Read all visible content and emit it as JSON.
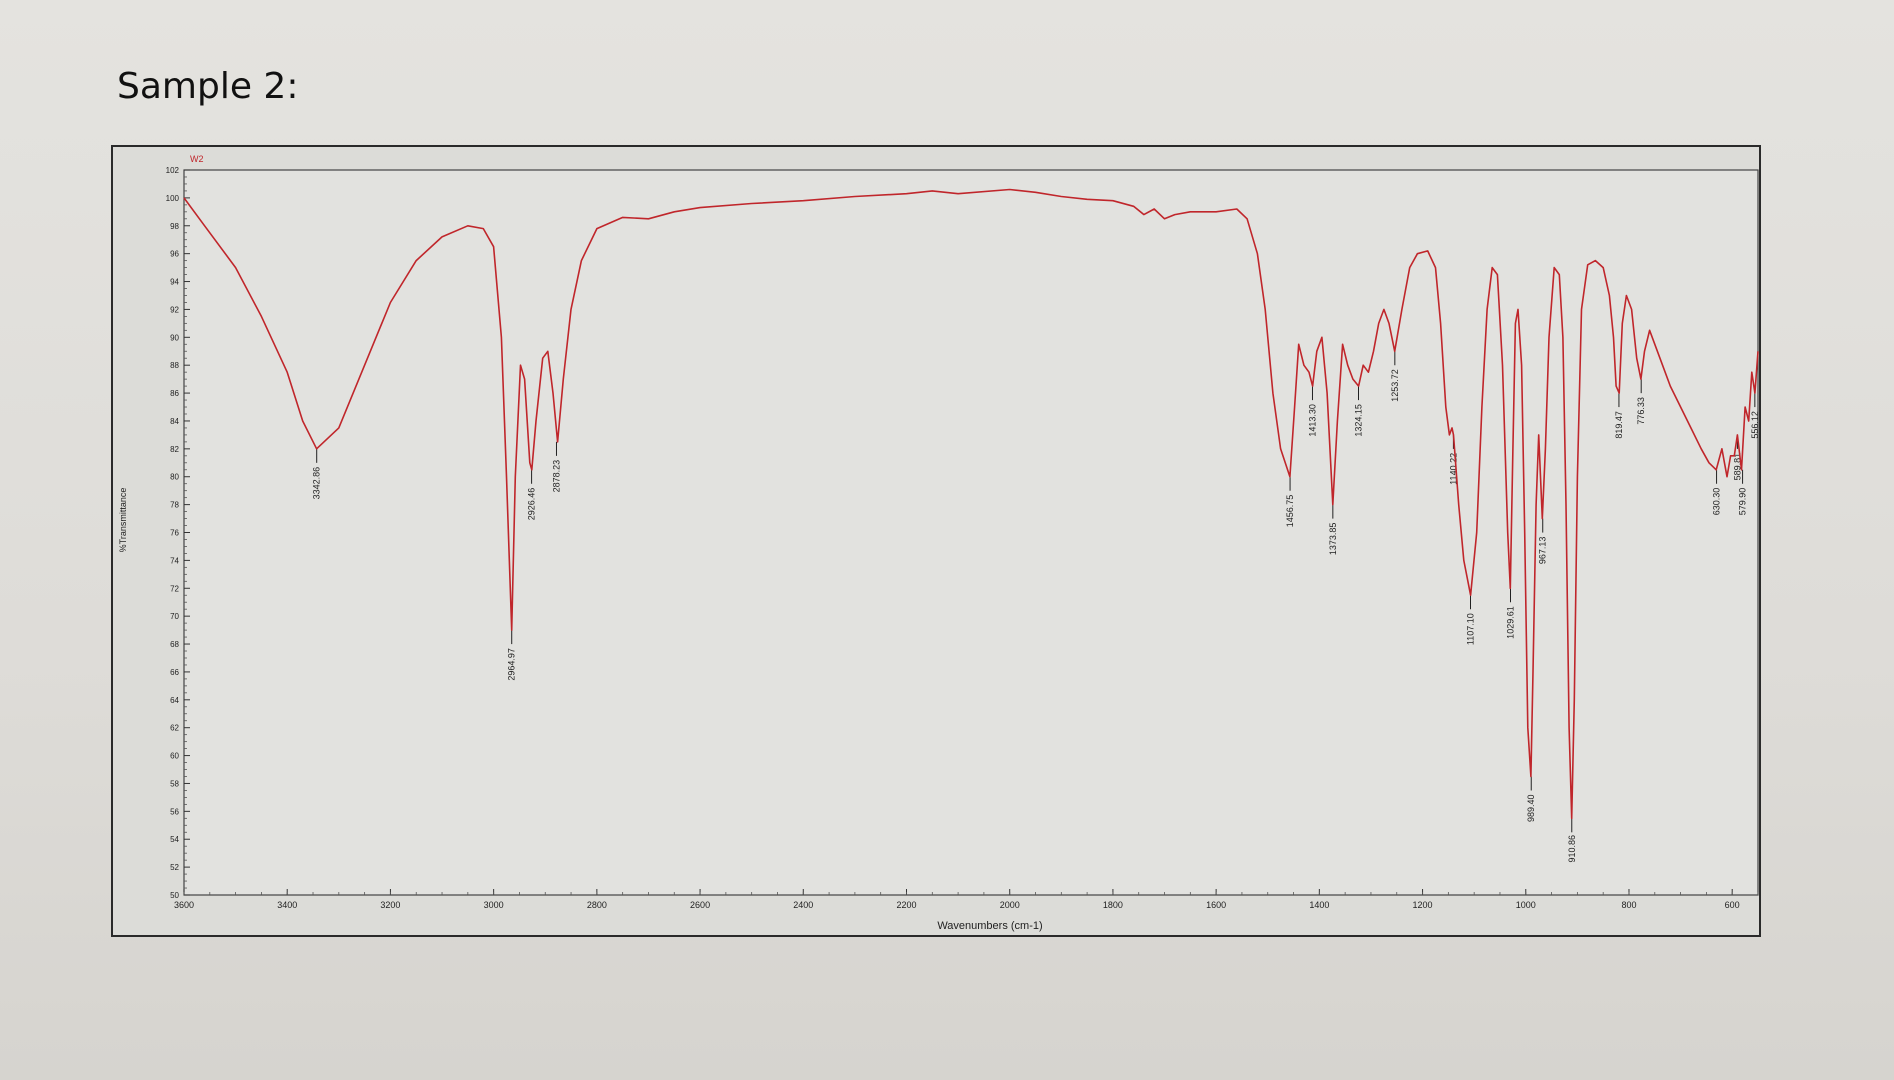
{
  "page": {
    "title": "Sample 2:"
  },
  "chart_data": {
    "type": "line",
    "series_label": "W2",
    "xlabel": "Wavenumbers (cm-1)",
    "ylabel": "%Transmittance",
    "xlim": [
      3600,
      550
    ],
    "ylim": [
      50,
      102
    ],
    "x_ticks": [
      3600,
      3400,
      3200,
      3000,
      2800,
      2600,
      2400,
      2200,
      2000,
      1800,
      1600,
      1400,
      1200,
      1000,
      800,
      600
    ],
    "y_ticks": [
      50,
      52,
      54,
      56,
      58,
      60,
      62,
      64,
      66,
      68,
      70,
      72,
      74,
      76,
      78,
      80,
      82,
      84,
      86,
      88,
      90,
      92,
      94,
      96,
      98,
      100,
      102
    ],
    "line_color": "#c0262b",
    "grid": false,
    "spectrum": [
      {
        "x": 3600,
        "y": 100
      },
      {
        "x": 3560,
        "y": 98
      },
      {
        "x": 3500,
        "y": 95
      },
      {
        "x": 3450,
        "y": 91.5
      },
      {
        "x": 3400,
        "y": 87.5
      },
      {
        "x": 3370,
        "y": 84
      },
      {
        "x": 3343,
        "y": 82
      },
      {
        "x": 3300,
        "y": 83.5
      },
      {
        "x": 3250,
        "y": 88
      },
      {
        "x": 3200,
        "y": 92.5
      },
      {
        "x": 3150,
        "y": 95.5
      },
      {
        "x": 3100,
        "y": 97.2
      },
      {
        "x": 3050,
        "y": 98
      },
      {
        "x": 3020,
        "y": 97.8
      },
      {
        "x": 3000,
        "y": 96.5
      },
      {
        "x": 2985,
        "y": 90
      },
      {
        "x": 2975,
        "y": 80
      },
      {
        "x": 2965,
        "y": 69
      },
      {
        "x": 2958,
        "y": 80
      },
      {
        "x": 2948,
        "y": 88
      },
      {
        "x": 2940,
        "y": 87
      },
      {
        "x": 2930,
        "y": 81
      },
      {
        "x": 2926,
        "y": 80.5
      },
      {
        "x": 2918,
        "y": 84
      },
      {
        "x": 2905,
        "y": 88.5
      },
      {
        "x": 2895,
        "y": 89
      },
      {
        "x": 2885,
        "y": 86
      },
      {
        "x": 2876,
        "y": 82.5
      },
      {
        "x": 2865,
        "y": 87
      },
      {
        "x": 2850,
        "y": 92
      },
      {
        "x": 2830,
        "y": 95.5
      },
      {
        "x": 2800,
        "y": 97.8
      },
      {
        "x": 2750,
        "y": 98.6
      },
      {
        "x": 2700,
        "y": 98.5
      },
      {
        "x": 2650,
        "y": 99
      },
      {
        "x": 2600,
        "y": 99.3
      },
      {
        "x": 2500,
        "y": 99.6
      },
      {
        "x": 2400,
        "y": 99.8
      },
      {
        "x": 2300,
        "y": 100.1
      },
      {
        "x": 2200,
        "y": 100.3
      },
      {
        "x": 2150,
        "y": 100.5
      },
      {
        "x": 2100,
        "y": 100.3
      },
      {
        "x": 2000,
        "y": 100.6
      },
      {
        "x": 1950,
        "y": 100.4
      },
      {
        "x": 1900,
        "y": 100.1
      },
      {
        "x": 1850,
        "y": 99.9
      },
      {
        "x": 1800,
        "y": 99.8
      },
      {
        "x": 1760,
        "y": 99.4
      },
      {
        "x": 1740,
        "y": 98.8
      },
      {
        "x": 1720,
        "y": 99.2
      },
      {
        "x": 1700,
        "y": 98.5
      },
      {
        "x": 1680,
        "y": 98.8
      },
      {
        "x": 1650,
        "y": 99
      },
      {
        "x": 1600,
        "y": 99
      },
      {
        "x": 1560,
        "y": 99.2
      },
      {
        "x": 1540,
        "y": 98.5
      },
      {
        "x": 1520,
        "y": 96
      },
      {
        "x": 1505,
        "y": 92
      },
      {
        "x": 1490,
        "y": 86
      },
      {
        "x": 1475,
        "y": 82
      },
      {
        "x": 1457,
        "y": 80
      },
      {
        "x": 1448,
        "y": 85
      },
      {
        "x": 1440,
        "y": 89.5
      },
      {
        "x": 1430,
        "y": 88
      },
      {
        "x": 1420,
        "y": 87.5
      },
      {
        "x": 1413,
        "y": 86.5
      },
      {
        "x": 1405,
        "y": 89
      },
      {
        "x": 1395,
        "y": 90
      },
      {
        "x": 1385,
        "y": 86
      },
      {
        "x": 1374,
        "y": 78
      },
      {
        "x": 1365,
        "y": 84
      },
      {
        "x": 1355,
        "y": 89.5
      },
      {
        "x": 1345,
        "y": 88
      },
      {
        "x": 1335,
        "y": 87
      },
      {
        "x": 1324,
        "y": 86.5
      },
      {
        "x": 1315,
        "y": 88
      },
      {
        "x": 1305,
        "y": 87.5
      },
      {
        "x": 1295,
        "y": 89
      },
      {
        "x": 1285,
        "y": 91
      },
      {
        "x": 1275,
        "y": 92
      },
      {
        "x": 1265,
        "y": 91
      },
      {
        "x": 1254,
        "y": 89
      },
      {
        "x": 1240,
        "y": 92
      },
      {
        "x": 1225,
        "y": 95
      },
      {
        "x": 1210,
        "y": 96
      },
      {
        "x": 1190,
        "y": 96.2
      },
      {
        "x": 1175,
        "y": 95
      },
      {
        "x": 1165,
        "y": 91
      },
      {
        "x": 1155,
        "y": 85
      },
      {
        "x": 1148,
        "y": 83
      },
      {
        "x": 1143,
        "y": 83.5
      },
      {
        "x": 1140,
        "y": 83
      },
      {
        "x": 1130,
        "y": 78
      },
      {
        "x": 1120,
        "y": 74
      },
      {
        "x": 1107,
        "y": 71.5
      },
      {
        "x": 1095,
        "y": 76
      },
      {
        "x": 1085,
        "y": 85
      },
      {
        "x": 1075,
        "y": 92
      },
      {
        "x": 1065,
        "y": 95
      },
      {
        "x": 1055,
        "y": 94.5
      },
      {
        "x": 1045,
        "y": 88
      },
      {
        "x": 1035,
        "y": 76
      },
      {
        "x": 1030,
        "y": 72
      },
      {
        "x": 1025,
        "y": 82
      },
      {
        "x": 1020,
        "y": 91
      },
      {
        "x": 1015,
        "y": 92
      },
      {
        "x": 1008,
        "y": 88
      },
      {
        "x": 1002,
        "y": 76
      },
      {
        "x": 996,
        "y": 62
      },
      {
        "x": 990,
        "y": 58.5
      },
      {
        "x": 986,
        "y": 66
      },
      {
        "x": 980,
        "y": 78
      },
      {
        "x": 975,
        "y": 83
      },
      {
        "x": 968,
        "y": 77
      },
      {
        "x": 962,
        "y": 82
      },
      {
        "x": 955,
        "y": 90
      },
      {
        "x": 945,
        "y": 95
      },
      {
        "x": 935,
        "y": 94.5
      },
      {
        "x": 928,
        "y": 90
      },
      {
        "x": 922,
        "y": 78
      },
      {
        "x": 916,
        "y": 62
      },
      {
        "x": 911,
        "y": 55.5
      },
      {
        "x": 906,
        "y": 64
      },
      {
        "x": 900,
        "y": 80
      },
      {
        "x": 892,
        "y": 92
      },
      {
        "x": 880,
        "y": 95.2
      },
      {
        "x": 865,
        "y": 95.5
      },
      {
        "x": 850,
        "y": 95
      },
      {
        "x": 838,
        "y": 93
      },
      {
        "x": 830,
        "y": 90
      },
      {
        "x": 825,
        "y": 86.5
      },
      {
        "x": 819,
        "y": 86
      },
      {
        "x": 813,
        "y": 91
      },
      {
        "x": 805,
        "y": 93
      },
      {
        "x": 795,
        "y": 92
      },
      {
        "x": 785,
        "y": 88.5
      },
      {
        "x": 777,
        "y": 87
      },
      {
        "x": 770,
        "y": 89
      },
      {
        "x": 760,
        "y": 90.5
      },
      {
        "x": 745,
        "y": 89
      },
      {
        "x": 720,
        "y": 86.5
      },
      {
        "x": 700,
        "y": 85
      },
      {
        "x": 680,
        "y": 83.5
      },
      {
        "x": 660,
        "y": 82
      },
      {
        "x": 645,
        "y": 81
      },
      {
        "x": 631,
        "y": 80.5
      },
      {
        "x": 620,
        "y": 82
      },
      {
        "x": 610,
        "y": 80
      },
      {
        "x": 603,
        "y": 81.5
      },
      {
        "x": 596,
        "y": 81.5
      },
      {
        "x": 590,
        "y": 83
      },
      {
        "x": 582,
        "y": 80.5
      },
      {
        "x": 575,
        "y": 85
      },
      {
        "x": 568,
        "y": 84
      },
      {
        "x": 562,
        "y": 87.5
      },
      {
        "x": 556,
        "y": 86
      },
      {
        "x": 550,
        "y": 89
      }
    ],
    "peaks": [
      {
        "label": "3342.86",
        "x": 3342.86,
        "y": 82
      },
      {
        "label": "2964.97",
        "x": 2964.97,
        "y": 69
      },
      {
        "label": "2926.46",
        "x": 2926.46,
        "y": 80.5
      },
      {
        "label": "2878.23",
        "x": 2878.23,
        "y": 82.5
      },
      {
        "label": "1456.75",
        "x": 1456.75,
        "y": 80
      },
      {
        "label": "1413.30",
        "x": 1413.3,
        "y": 86.5
      },
      {
        "label": "1373.85",
        "x": 1373.85,
        "y": 78
      },
      {
        "label": "1324.15",
        "x": 1324.15,
        "y": 86.5
      },
      {
        "label": "1253.72",
        "x": 1253.72,
        "y": 89
      },
      {
        "label": "1140.22",
        "x": 1140.22,
        "y": 83
      },
      {
        "label": "1107.10",
        "x": 1107.1,
        "y": 71.5
      },
      {
        "label": "1029.61",
        "x": 1029.61,
        "y": 72
      },
      {
        "label": "989.40",
        "x": 989.4,
        "y": 58.5
      },
      {
        "label": "967.13",
        "x": 967.13,
        "y": 77
      },
      {
        "label": "910.86",
        "x": 910.86,
        "y": 55.5
      },
      {
        "label": "819.47",
        "x": 819.47,
        "y": 86
      },
      {
        "label": "776.33",
        "x": 776.33,
        "y": 87
      },
      {
        "label": "630.30",
        "x": 630.3,
        "y": 80.5
      },
      {
        "label": "589.81",
        "x": 589.81,
        "y": 83
      },
      {
        "label": "579.90",
        "x": 579.9,
        "y": 80.5
      },
      {
        "label": "556.12",
        "x": 556.12,
        "y": 86
      }
    ]
  }
}
